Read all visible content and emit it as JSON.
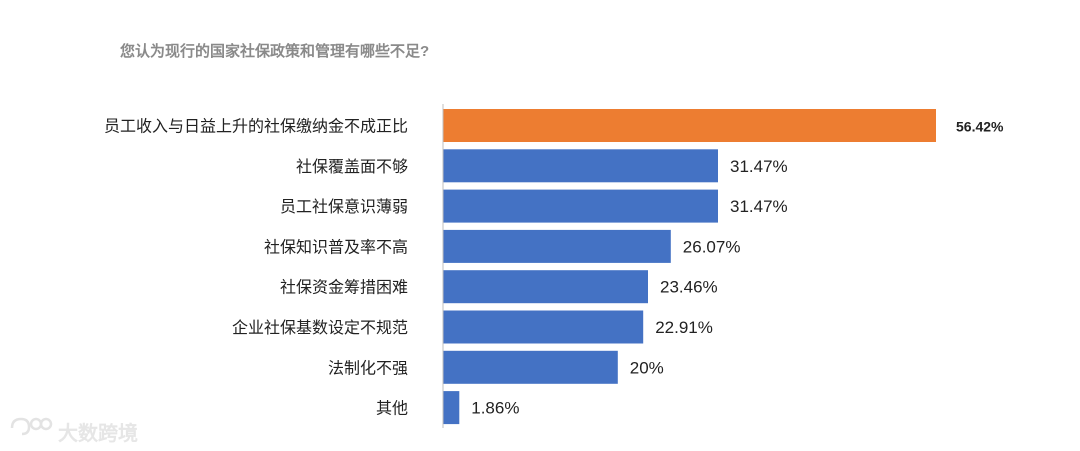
{
  "chart_data": {
    "type": "bar",
    "orientation": "horizontal",
    "title": "您认为现行的国家社保政策和管理有哪些不足?",
    "categories": [
      "员工收入与日益上升的社保缴纳金不成正比",
      "社保覆盖面不够",
      "员工社保意识薄弱",
      "社保知识普及率不高",
      "社保资金筹措困难",
      "企业社保基数设定不规范",
      "法制化不强",
      "其他"
    ],
    "values": [
      56.42,
      31.47,
      31.47,
      26.07,
      23.46,
      22.91,
      20,
      1.86
    ],
    "value_labels": [
      "56.42%",
      "31.47%",
      "31.47%",
      "26.07%",
      "23.46%",
      "22.91%",
      "20%",
      "1.86%"
    ],
    "unit": "%",
    "xlim": [
      0,
      60
    ],
    "grid": false,
    "legend": "none",
    "colors": {
      "highlight": "#ED7D31",
      "default": "#4472C4"
    },
    "highlight_index": 0
  },
  "watermark": {
    "text": "大数跨境",
    "icon": "logo-icon"
  }
}
